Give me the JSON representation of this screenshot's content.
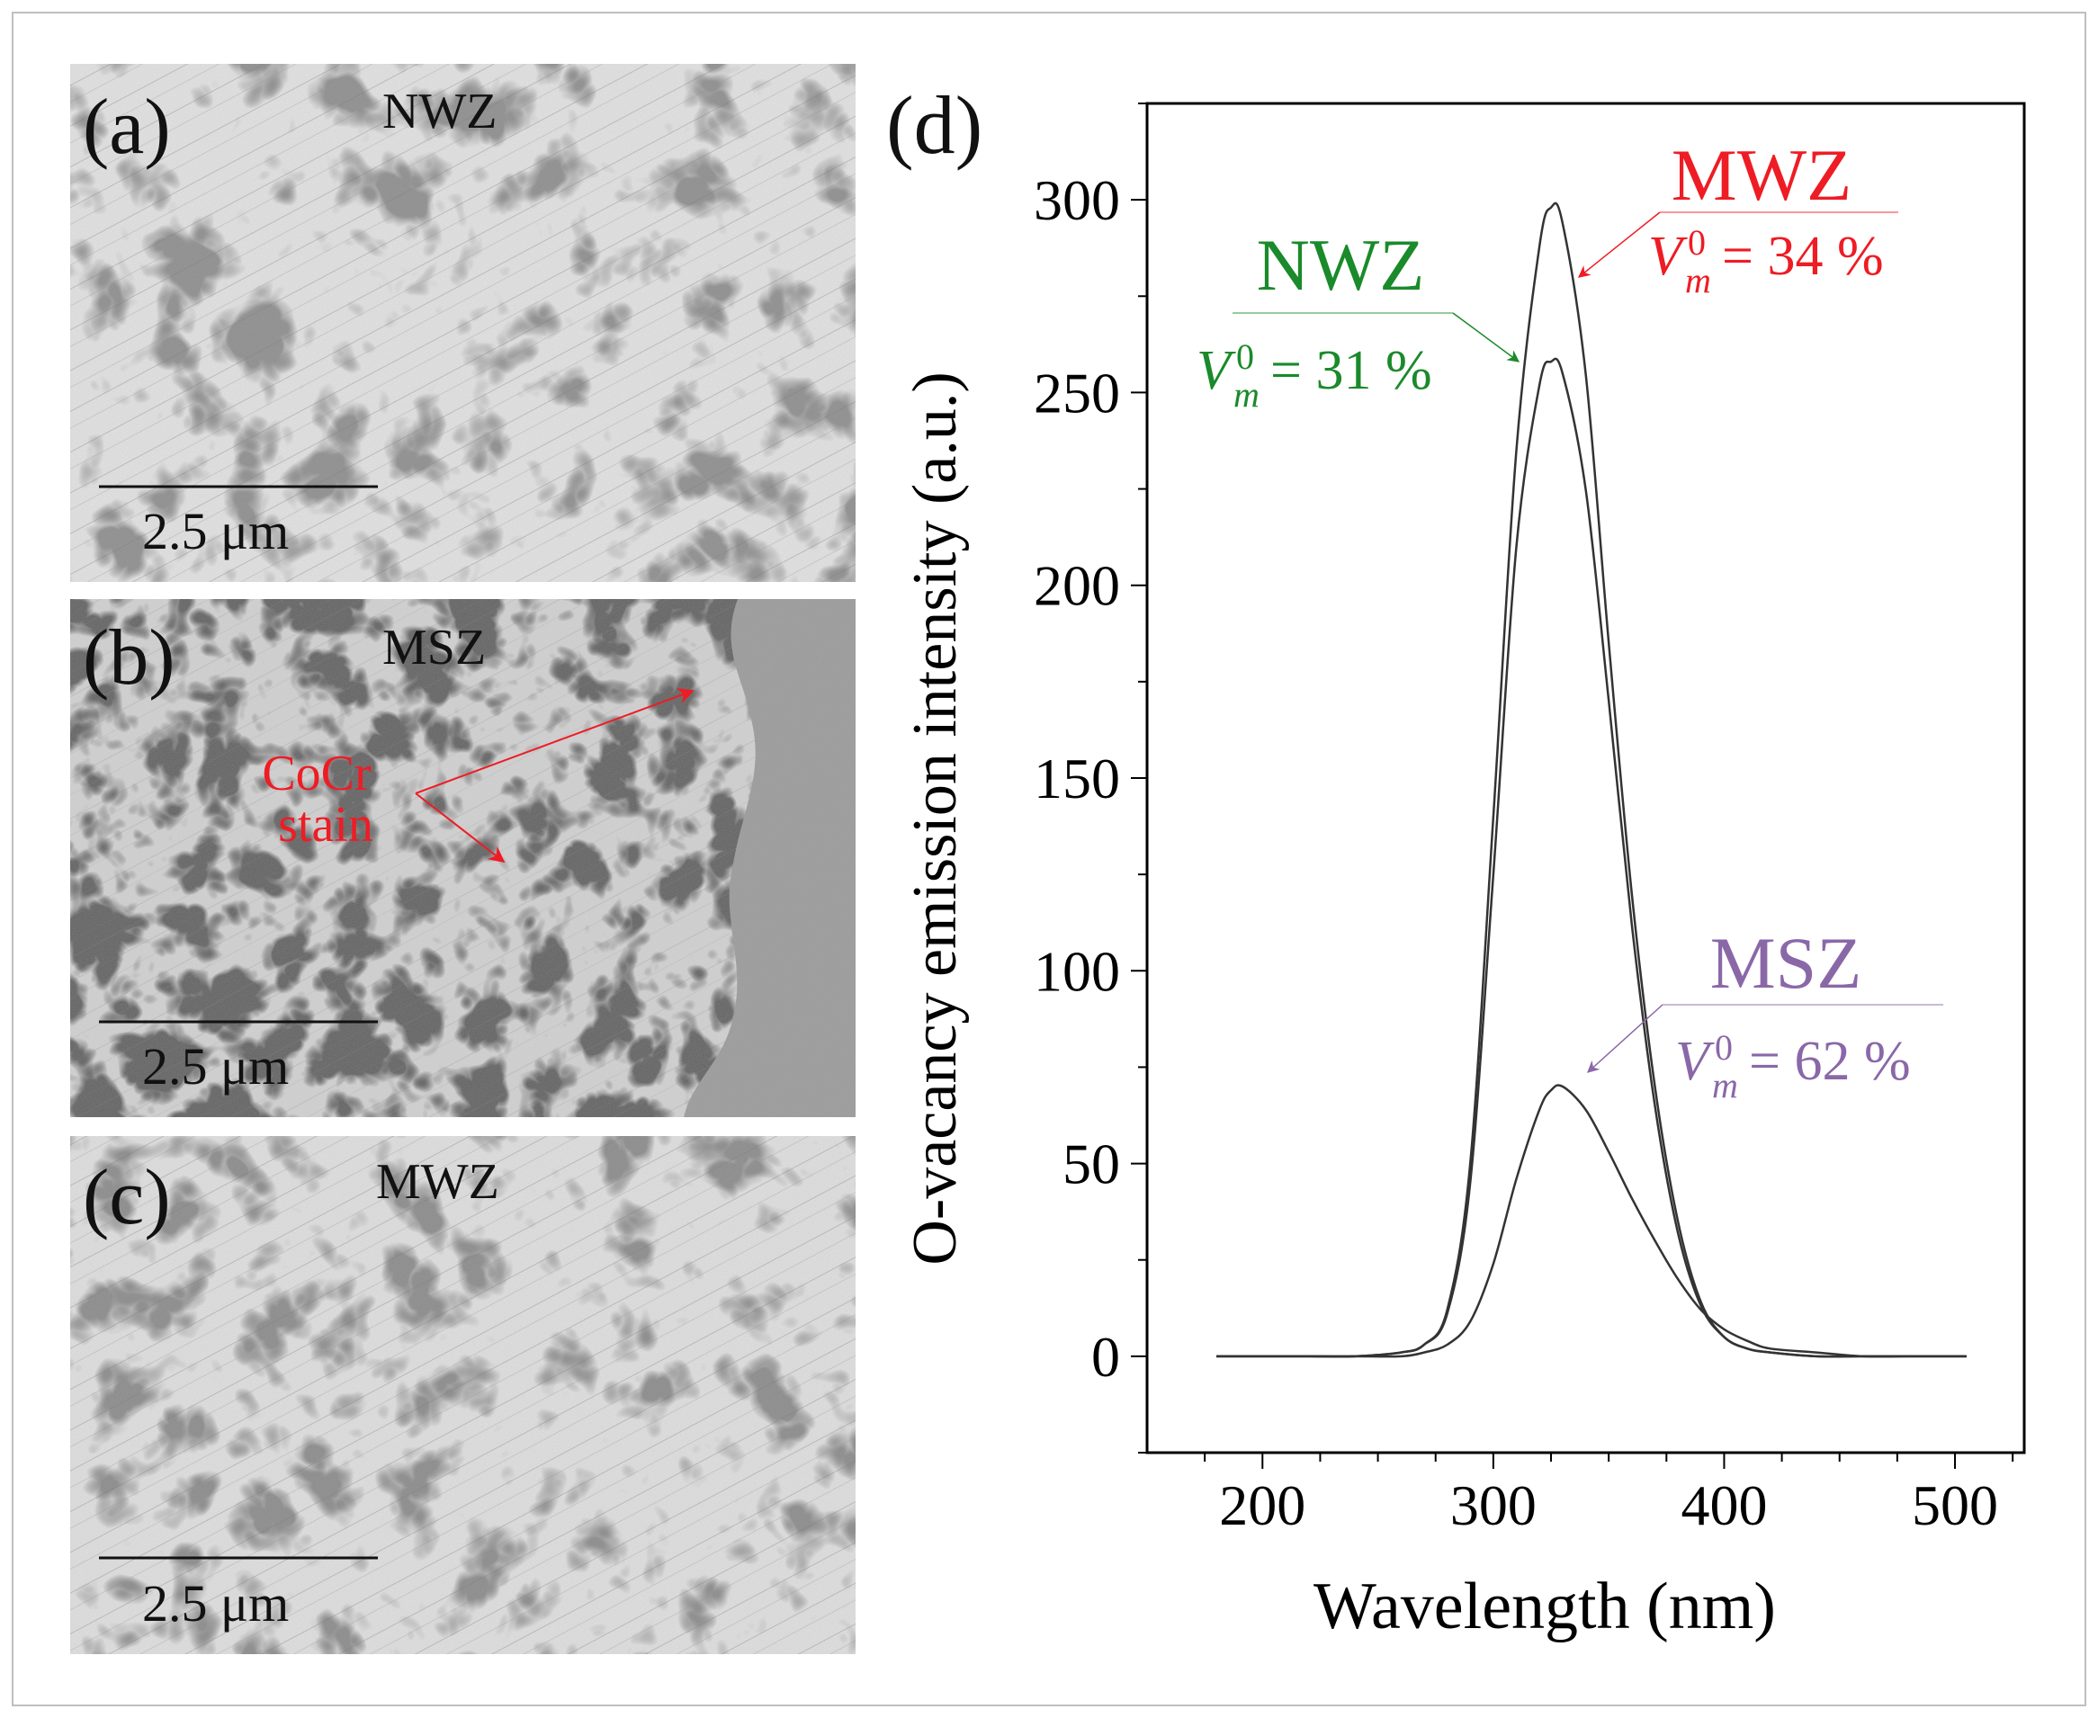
{
  "panels": {
    "a": {
      "letter": "(a)",
      "zone": "NWZ",
      "scale": "2.5 μm"
    },
    "b": {
      "letter": "(b)",
      "zone": "MSZ",
      "scale": "2.5 μm",
      "annotation_line1": "CoCr",
      "annotation_line2": "stain"
    },
    "c": {
      "letter": "(c)",
      "zone": "MWZ",
      "scale": "2.5 μm"
    },
    "d": {
      "letter": "(d)"
    }
  },
  "colors": {
    "nwz": "#1a8a2a",
    "mwz": "#ee1c24",
    "msz": "#8a68a8",
    "stain": "#ee1c24",
    "curve": "#333333",
    "axis": "#000000"
  },
  "chart_data": {
    "type": "line",
    "title": "",
    "xlabel": "Wavelength (nm)",
    "ylabel": "O-vacancy emission intensity  (a.u.)",
    "xlim": [
      150,
      530
    ],
    "ylim": [
      -25,
      325
    ],
    "xticks": [
      200,
      300,
      400,
      500
    ],
    "xtick_labels": [
      "200",
      "300",
      "400",
      "500"
    ],
    "yticks": [
      0,
      50,
      100,
      150,
      200,
      250,
      300
    ],
    "ytick_labels": [
      "0",
      "50",
      "100",
      "150",
      "200",
      "250",
      "300"
    ],
    "grid": false,
    "legend": "none",
    "x": [
      180,
      200,
      220,
      240,
      260,
      270,
      280,
      290,
      300,
      310,
      320,
      325,
      330,
      340,
      350,
      360,
      370,
      380,
      390,
      400,
      410,
      420,
      440,
      460,
      480,
      505
    ],
    "series": [
      {
        "name": "MWZ",
        "label": "MWZ",
        "vm": "= 34 %",
        "values": [
          0,
          0,
          0,
          0,
          1,
          3,
          12,
          50,
          140,
          235,
          288,
          298,
          294,
          255,
          185,
          120,
          70,
          35,
          14,
          5,
          2,
          1,
          0,
          0,
          0,
          0
        ]
      },
      {
        "name": "NWZ",
        "label": "NWZ",
        "vm": "= 31 %",
        "values": [
          0,
          0,
          0,
          0,
          1,
          3,
          11,
          45,
          125,
          210,
          252,
          258,
          255,
          225,
          170,
          112,
          65,
          32,
          13,
          5,
          2,
          1,
          0,
          0,
          0,
          0
        ]
      },
      {
        "name": "MSZ",
        "label": "MSZ",
        "vm": "= 62 %",
        "values": [
          0,
          0,
          0,
          0,
          0,
          1,
          3,
          9,
          24,
          46,
          64,
          69,
          70,
          64,
          53,
          41,
          30,
          20,
          12,
          7,
          4,
          2,
          1,
          0,
          0,
          0
        ]
      }
    ]
  }
}
